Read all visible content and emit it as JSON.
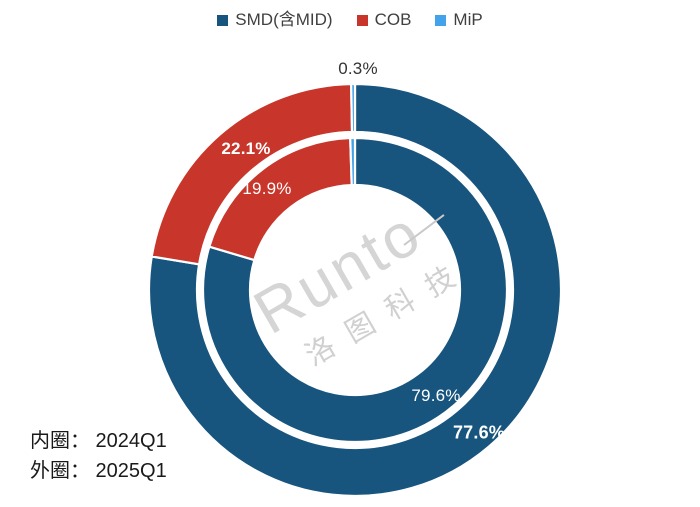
{
  "chart_data": {
    "type": "donut",
    "title": "",
    "categories": [
      "SMD(含MID)",
      "COB",
      "MiP"
    ],
    "colors": [
      "#17547E",
      "#C8352A",
      "#42A3EA"
    ],
    "unit": "%",
    "legend_position": "top",
    "series": [
      {
        "name": "2024Q1",
        "ring": "inner",
        "values": [
          79.6,
          19.9,
          0.5
        ],
        "labels_shown": [
          true,
          true,
          false
        ]
      },
      {
        "name": "2025Q1",
        "ring": "outer",
        "values": [
          77.6,
          22.1,
          0.3
        ],
        "labels_shown": [
          true,
          true,
          true
        ]
      }
    ],
    "display_labels": {
      "outer_smd": "77.6%",
      "outer_cob": "22.1%",
      "outer_mip": "0.3%",
      "inner_smd": "79.6%",
      "inner_cob": "19.9%"
    }
  },
  "watermark": {
    "brand": "Runto",
    "cn_name": "洛图科技"
  },
  "footnotes": {
    "inner_ring": "内圈： 2024Q1",
    "outer_ring": "外圈： 2025Q1"
  }
}
